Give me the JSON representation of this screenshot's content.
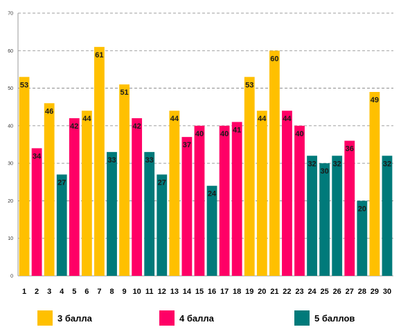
{
  "chart_data": {
    "type": "bar",
    "title": "",
    "xlabel": "",
    "ylabel": "",
    "ylim": [
      0,
      70
    ],
    "yticks": [
      0,
      10,
      20,
      30,
      40,
      50,
      60,
      70
    ],
    "grid": true,
    "legend_position": "bottom",
    "categories": [
      "1",
      "2",
      "3",
      "4",
      "5",
      "6",
      "7",
      "8",
      "9",
      "10",
      "11",
      "12",
      "13",
      "14",
      "15",
      "16",
      "17",
      "18",
      "19",
      "20",
      "21",
      "22",
      "23",
      "24",
      "25",
      "26",
      "27",
      "28",
      "29",
      "30"
    ],
    "values": [
      53,
      34,
      46,
      27,
      42,
      44,
      61,
      33,
      51,
      42,
      33,
      27,
      44,
      37,
      40,
      24,
      40,
      41,
      53,
      44,
      60,
      44,
      40,
      32,
      30,
      32,
      36,
      20,
      49,
      32
    ],
    "groups": [
      0,
      1,
      0,
      2,
      1,
      0,
      0,
      2,
      0,
      1,
      2,
      2,
      0,
      1,
      1,
      2,
      1,
      1,
      0,
      0,
      0,
      1,
      1,
      2,
      2,
      2,
      1,
      2,
      0,
      2
    ],
    "series": [
      {
        "name": "3 балла",
        "color": "#FFC000"
      },
      {
        "name": "4 балла",
        "color": "#FF0066"
      },
      {
        "name": "5 баллов",
        "color": "#007A7A"
      }
    ]
  }
}
